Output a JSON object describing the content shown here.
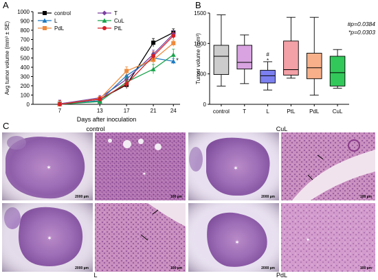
{
  "panel_labels": {
    "a": "A",
    "b": "B",
    "c": "C"
  },
  "chart_data": [
    {
      "type": "line",
      "panel": "A",
      "ylabel": "Avg tumor volume (mm³ ± SE)",
      "xlabel": "Days after inoculation",
      "x": [
        7,
        13,
        17,
        21,
        24
      ],
      "ylim": [
        0,
        1000
      ],
      "yticks": [
        0,
        100,
        200,
        300,
        400,
        500,
        600,
        700,
        800,
        900,
        1000
      ],
      "series": [
        {
          "name": "control",
          "color": "#000000",
          "marker": "square",
          "values": [
            5,
            55,
            210,
            665,
            775
          ],
          "err": [
            40,
            25,
            40,
            45,
            40
          ]
        },
        {
          "name": "T",
          "color": "#7b3fa0",
          "marker": "diamond",
          "values": [
            5,
            70,
            270,
            540,
            760
          ],
          "err": [
            40,
            25,
            40,
            45,
            35
          ]
        },
        {
          "name": "L",
          "color": "#1f7bc1",
          "marker": "triangle",
          "values": [
            0,
            40,
            310,
            500,
            465
          ],
          "err": [
            40,
            25,
            50,
            55,
            30
          ]
        },
        {
          "name": "CuL",
          "color": "#18a34a",
          "marker": "triangle",
          "values": [
            0,
            30,
            240,
            380,
            535
          ],
          "err": [
            40,
            25,
            50,
            50,
            60
          ]
        },
        {
          "name": "PdL",
          "color": "#ee8a3c",
          "marker": "square",
          "values": [
            0,
            60,
            360,
            480,
            660
          ],
          "err": [
            40,
            25,
            45,
            50,
            35
          ]
        },
        {
          "name": "PtL",
          "color": "#d41f26",
          "marker": "circle",
          "values": [
            0,
            55,
            220,
            520,
            740
          ],
          "err": [
            40,
            25,
            40,
            45,
            35
          ]
        }
      ],
      "annotations": [
        {
          "text": "*",
          "near": "L"
        }
      ]
    },
    {
      "type": "box",
      "panel": "B",
      "ylabel": "Tumor volume (mm³)",
      "ylim": [
        0,
        1500
      ],
      "yticks": [
        0,
        500,
        1000,
        1500
      ],
      "categories": [
        "control",
        "T",
        "L",
        "PtL",
        "PdL",
        "CuL"
      ],
      "boxes": [
        {
          "name": "control",
          "color": "#cccccc",
          "min": 300,
          "q1": 490,
          "median": 790,
          "q3": 970,
          "max": 1470
        },
        {
          "name": "T",
          "color": "#d8a3e0",
          "min": 340,
          "q1": 580,
          "median": 690,
          "q3": 970,
          "max": 1140
        },
        {
          "name": "L",
          "color": "#7b7ff0",
          "min": 235,
          "q1": 350,
          "median": 470,
          "q3": 560,
          "max": 700
        },
        {
          "name": "PtL",
          "color": "#f3a0a6",
          "min": 430,
          "q1": 480,
          "median": 570,
          "q3": 1040,
          "max": 1430
        },
        {
          "name": "PdL",
          "color": "#f7b08a",
          "min": 150,
          "q1": 420,
          "median": 600,
          "q3": 840,
          "max": 1430
        },
        {
          "name": "CuL",
          "color": "#32c85a",
          "min": 265,
          "q1": 300,
          "median": 520,
          "q3": 790,
          "max": 900
        }
      ],
      "annotations": [
        "#p=0.0384",
        "*p=0.0303"
      ],
      "l_marks": [
        "#",
        "*"
      ]
    }
  ],
  "panel_c": {
    "group_labels": {
      "top_left": "control",
      "top_right": "CuL",
      "bottom_left": "L",
      "bottom_right": "PdL"
    },
    "scale_bars": {
      "low": "2000 µm",
      "high": "100 µm"
    }
  }
}
